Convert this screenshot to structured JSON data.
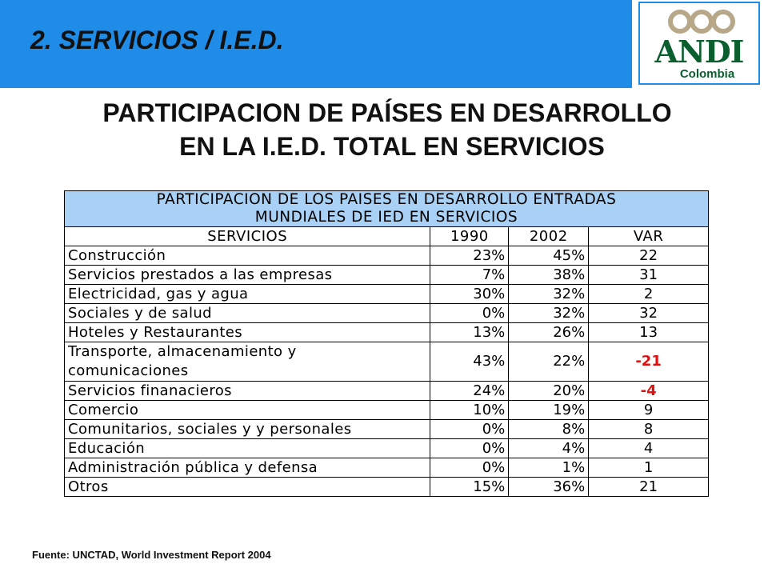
{
  "banner": {
    "title": "2. SERVICIOS / I.E.D."
  },
  "logo": {
    "word": "ANDI",
    "sub": "Colombia",
    "brand_color": "#0b5e2e"
  },
  "heading": {
    "line1": "PARTICIPACION DE PAÍSES EN DESARROLLO",
    "line2": "EN LA I.E.D. TOTAL EN SERVICIOS"
  },
  "table": {
    "caption_line1": "PARTICIPACION DE LOS PAISES EN DESARROLLO ENTRADAS",
    "caption_line2": "MUNDIALES DE IED EN SERVICIOS",
    "columns": [
      "SERVICIOS",
      "1990",
      "2002",
      "VAR"
    ],
    "rows": [
      {
        "sector": "Construcción",
        "y1990": "23%",
        "y2002": "45%",
        "var": "22"
      },
      {
        "sector": "Servicios prestados a las empresas",
        "y1990": "7%",
        "y2002": "38%",
        "var": "31"
      },
      {
        "sector": "Electricidad, gas y agua",
        "y1990": "30%",
        "y2002": "32%",
        "var": "2"
      },
      {
        "sector": "Sociales y de salud",
        "y1990": "0%",
        "y2002": "32%",
        "var": "32"
      },
      {
        "sector": "Hoteles y Restaurantes",
        "y1990": "13%",
        "y2002": "26%",
        "var": "13"
      },
      {
        "sector_line1": "Transporte, almacenamiento y",
        "sector_line2": "comunicaciones",
        "y1990": "43%",
        "y2002": "22%",
        "var": "-21"
      },
      {
        "sector": "Servicios finanacieros",
        "y1990": "24%",
        "y2002": "20%",
        "var": "-4"
      },
      {
        "sector": "Comercio",
        "y1990": "10%",
        "y2002": "19%",
        "var": "9"
      },
      {
        "sector": "Comunitarios, sociales y y personales",
        "y1990": "0%",
        "y2002": "8%",
        "var": "8"
      },
      {
        "sector": "Educación",
        "y1990": "0%",
        "y2002": "4%",
        "var": "4"
      },
      {
        "sector": "Administración pública y defensa",
        "y1990": "0%",
        "y2002": "1%",
        "var": "1"
      },
      {
        "sector": "Otros",
        "y1990": "15%",
        "y2002": "36%",
        "var": "21"
      }
    ]
  },
  "source": "Fuente: UNCTAD, World Investment Report 2004",
  "colors": {
    "banner": "#1f8de8",
    "caption_bg": "#a9d0f5",
    "negative": "#e01010"
  }
}
